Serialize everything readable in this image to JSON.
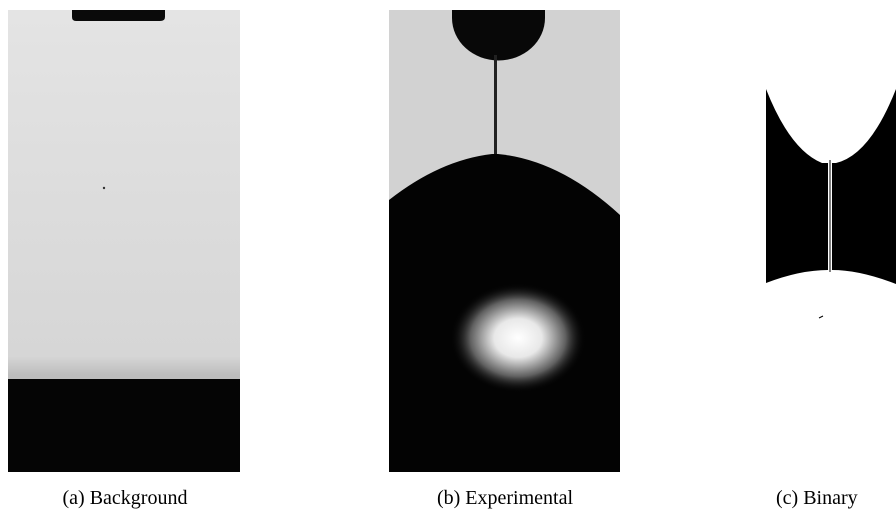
{
  "figure": {
    "captions": [
      "(a) Background",
      "(b) Experimental",
      "(c) Binary"
    ]
  }
}
